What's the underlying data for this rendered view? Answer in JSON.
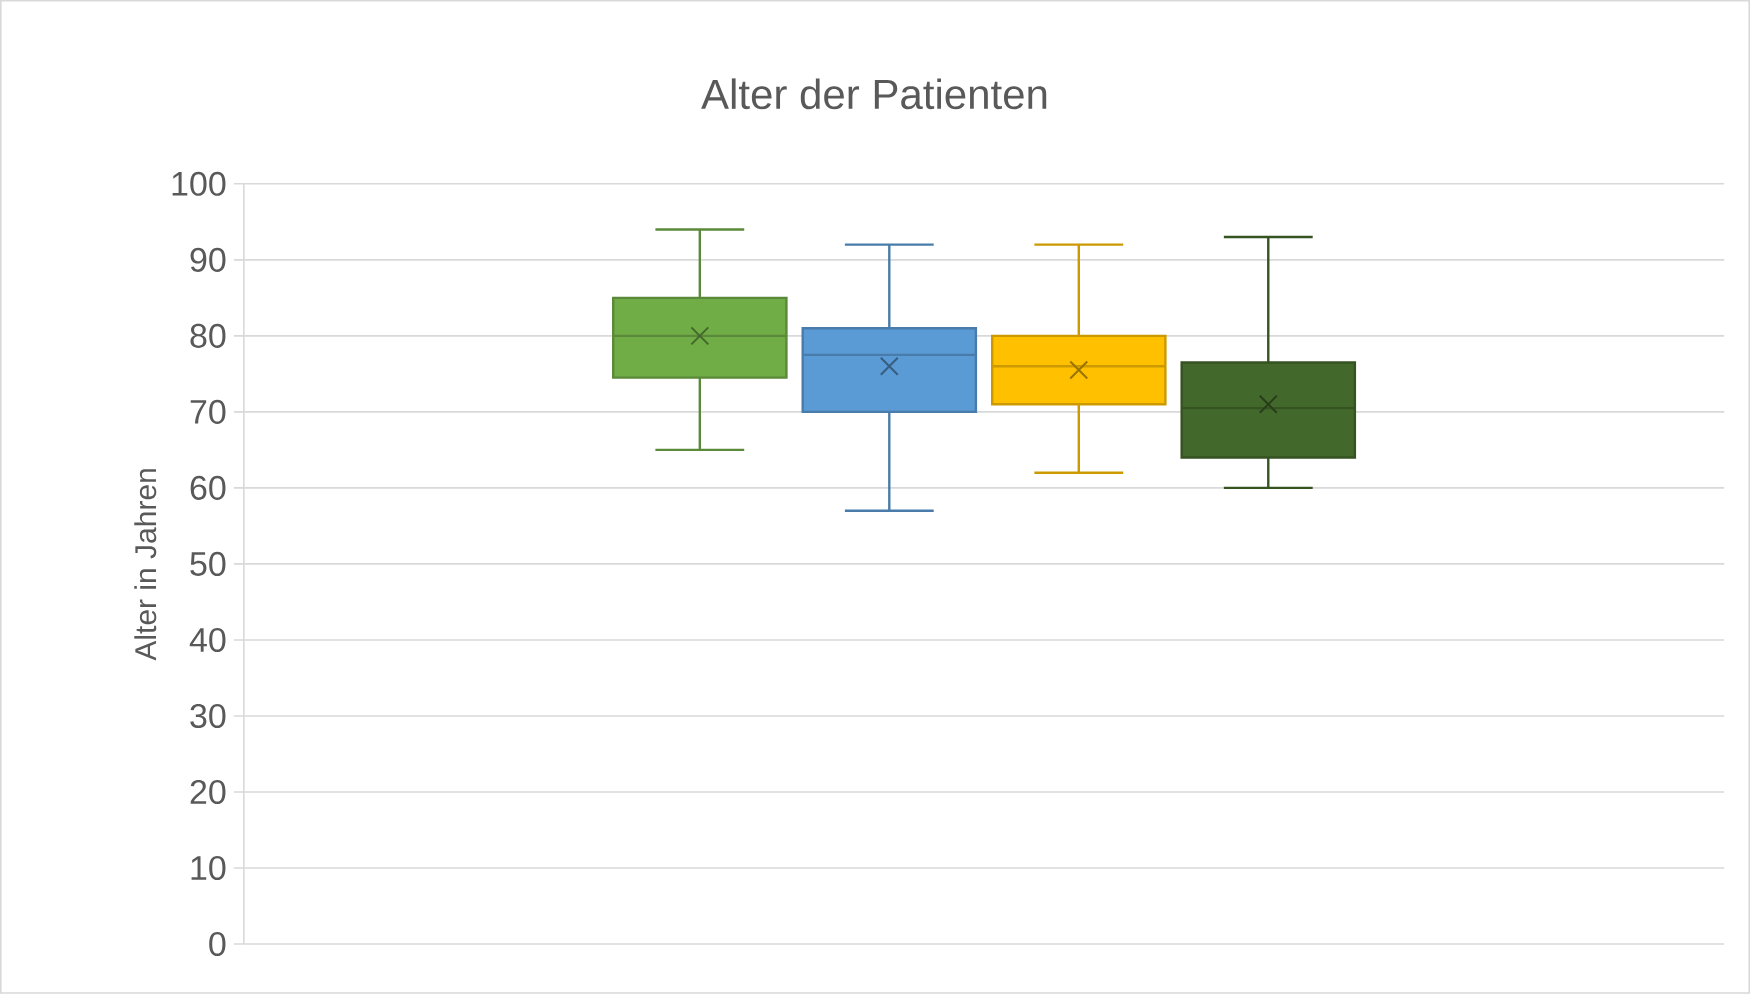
{
  "chart_data": {
    "type": "box",
    "title": "Alter der Patienten",
    "ylabel": "Alter in Jahren",
    "categories": [
      null
    ],
    "series": [
      {
        "color": "#70ad47",
        "boxes": [
          {
            "low": 65,
            "q1": 74.5,
            "median": 80,
            "q3": 85,
            "high": 94,
            "mean": 80
          }
        ]
      },
      {
        "color": "#5b9bd5",
        "boxes": [
          {
            "low": 57,
            "q1": 70,
            "median": 77.5,
            "q3": 81,
            "high": 92,
            "mean": 76
          }
        ]
      },
      {
        "color": "#ffc000",
        "boxes": [
          {
            "low": 62,
            "q1": 71,
            "median": 76,
            "q3": 80,
            "high": 92,
            "mean": 75.5
          }
        ]
      },
      {
        "color": "#43682b",
        "boxes": [
          {
            "low": 60,
            "q1": 64,
            "median": 70.5,
            "q3": 76.5,
            "high": 93,
            "mean": 71
          }
        ]
      }
    ],
    "ylim": [
      0,
      100
    ],
    "yticks": [
      0,
      10,
      20,
      30,
      40,
      50,
      60,
      70,
      80,
      90,
      100
    ],
    "grid": "y",
    "marker": "cross"
  }
}
